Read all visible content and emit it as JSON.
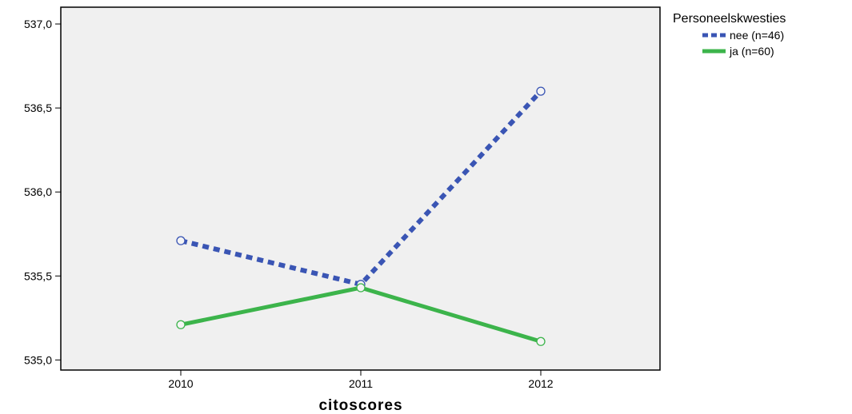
{
  "chart_data": {
    "type": "line",
    "xlabel": "citoscores",
    "ylabel": "",
    "categories": [
      "2010",
      "2011",
      "2012"
    ],
    "ylim": [
      534.94,
      537.1
    ],
    "yticks": [
      535.0,
      535.5,
      536.0,
      536.5,
      537.0
    ],
    "ytick_labels": [
      "535,0",
      "535,5",
      "536,0",
      "536,5",
      "537,0"
    ],
    "grid": false,
    "legend": {
      "title": "Personeelskwesties",
      "placement": "top-right-outside"
    },
    "series": [
      {
        "name": "nee (n=46)",
        "values": [
          535.71,
          535.45,
          536.6
        ],
        "color": "#3a55b4",
        "style": "dashed"
      },
      {
        "name": "ja (n=60)",
        "values": [
          535.21,
          535.43,
          535.11
        ],
        "color": "#3cb44b",
        "style": "solid"
      }
    ]
  }
}
